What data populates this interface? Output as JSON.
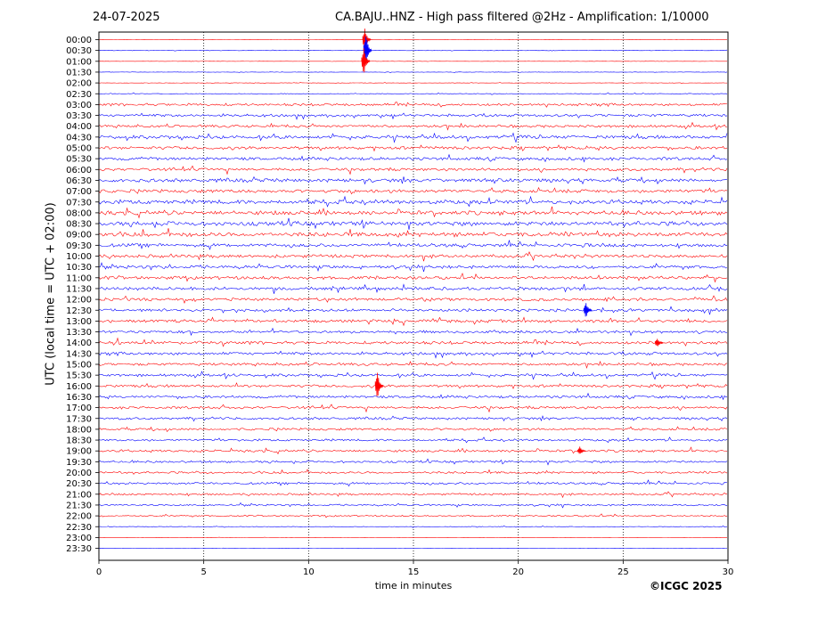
{
  "header": {
    "date": "24-07-2025",
    "title": "CA.BAJU..HNZ - High pass filtered @2Hz - Amplification: 1/10000"
  },
  "chart_data": {
    "type": "line",
    "title": "CA.BAJU..HNZ - High pass filtered @2Hz - Amplification: 1/10000",
    "xlabel": "time in minutes",
    "ylabel": "UTC (local time = UTC + 02:00)",
    "xlim": [
      0,
      30
    ],
    "x_ticks": [
      "0",
      "5",
      "10",
      "15",
      "20",
      "25",
      "30"
    ],
    "grid": "vertical dotted lines at 5-minute intervals",
    "row_labels": [
      "00:00",
      "00:30",
      "01:00",
      "01:30",
      "02:00",
      "02:30",
      "03:00",
      "03:30",
      "04:00",
      "04:30",
      "05:00",
      "05:30",
      "06:00",
      "06:30",
      "07:00",
      "07:30",
      "08:00",
      "08:30",
      "09:00",
      "09:30",
      "10:00",
      "10:30",
      "11:00",
      "11:30",
      "12:00",
      "12:30",
      "13:00",
      "13:30",
      "14:00",
      "14:30",
      "15:00",
      "15:30",
      "16:00",
      "16:30",
      "17:00",
      "17:30",
      "18:00",
      "18:30",
      "19:00",
      "19:30",
      "20:00",
      "20:30",
      "21:00",
      "21:30",
      "22:00",
      "22:30",
      "23:00",
      "23:30"
    ],
    "trace_colors": [
      "#ff0000",
      "#0000ff"
    ],
    "noise_levels": [
      0.05,
      0.1,
      0.05,
      0.08,
      0.08,
      0.15,
      0.5,
      0.55,
      0.55,
      0.7,
      0.65,
      0.65,
      0.6,
      0.75,
      0.7,
      0.85,
      0.85,
      0.9,
      0.9,
      0.7,
      0.65,
      0.65,
      0.65,
      0.65,
      0.6,
      0.6,
      0.6,
      0.55,
      0.6,
      0.6,
      0.55,
      0.55,
      0.55,
      0.55,
      0.55,
      0.5,
      0.5,
      0.45,
      0.5,
      0.45,
      0.45,
      0.45,
      0.4,
      0.35,
      0.3,
      0.12,
      0.05,
      0.05
    ],
    "events": [
      {
        "row": "00:00",
        "minute": 12.75,
        "amplitude": 14
      },
      {
        "row": "00:30",
        "minute": 12.8,
        "amplitude": 22
      },
      {
        "row": "01:00",
        "minute": 12.7,
        "amplitude": 18
      },
      {
        "row": "12:30",
        "minute": 23.3,
        "amplitude": 10
      },
      {
        "row": "14:00",
        "minute": 26.7,
        "amplitude": 6
      },
      {
        "row": "16:00",
        "minute": 13.35,
        "amplitude": 16
      },
      {
        "row": "19:00",
        "minute": 23.0,
        "amplitude": 5
      }
    ]
  },
  "footer": {
    "copyright": "©ICGC 2025"
  }
}
